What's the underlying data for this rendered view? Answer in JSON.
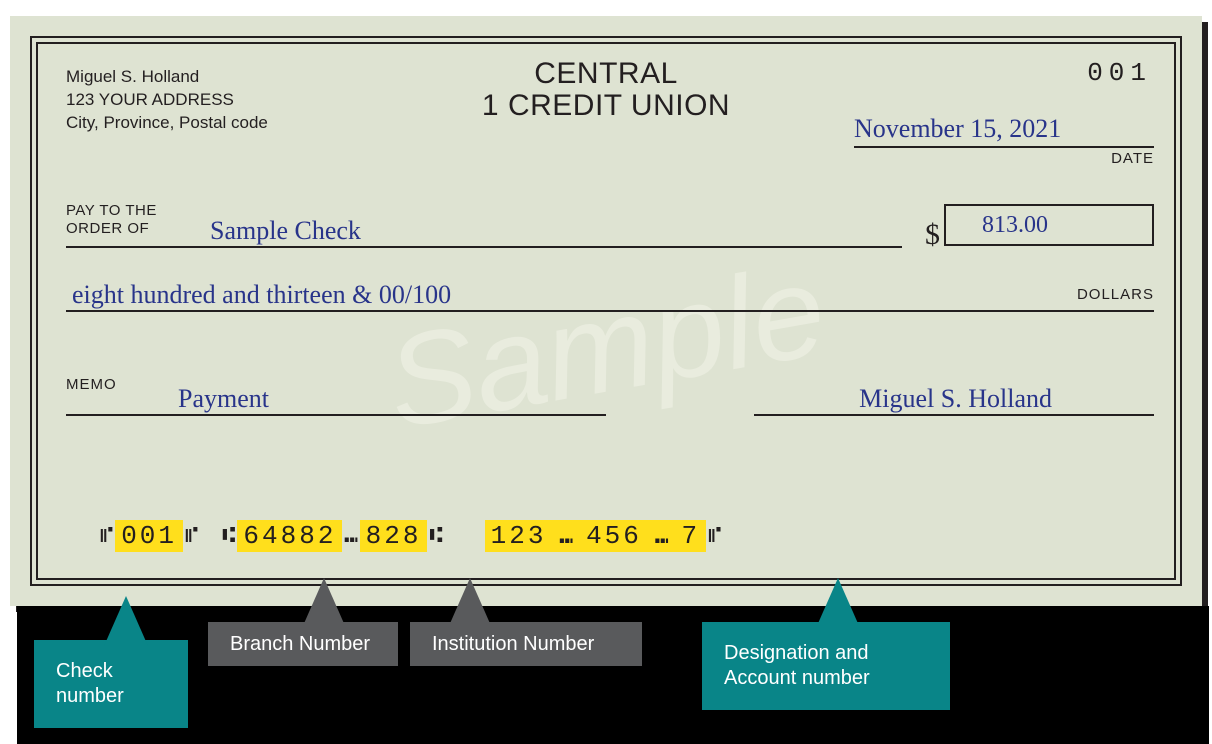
{
  "colors": {
    "check_bg": "#dee3d2",
    "rule": "#231f20",
    "ink_blue": "#28348a",
    "highlight": "#ffdf1c",
    "callout_teal": "#098588",
    "callout_gray": "#595a5c",
    "watermark": "#e9ecde",
    "shadow": "#231f20"
  },
  "typography": {
    "holder_fontsize": 17,
    "bank_fontsize": 30,
    "checknum_top_fontsize": 26,
    "label_fontsize": 15,
    "handwriting_fontsize": 26,
    "dollar_fontsize": 30,
    "amount_fontsize": 24,
    "micr_fontsize": 26,
    "watermark_fontsize": 130,
    "callout_fontsize": 20
  },
  "check": {
    "holder_name": "Miguel S. Holland",
    "holder_addr1": "123 YOUR ADDRESS",
    "holder_addr2": "City, Province, Postal code",
    "bank_line1": "CENTRAL",
    "bank_line2": "1 CREDIT UNION",
    "check_number_top": "001",
    "date": "November 15, 2021",
    "date_label": "DATE",
    "pay_to_label_l1": "PAY TO THE",
    "pay_to_label_l2": "ORDER OF",
    "payee": "Sample Check",
    "currency_symbol": "$",
    "amount_numeric": "813.00",
    "amount_words": "eight hundred and thirteen & 00/100",
    "dollars_label": "DOLLARS",
    "memo_label": "MEMO",
    "memo": "Payment",
    "signature": "Miguel S. Holland",
    "watermark_text": "Sample"
  },
  "micr": {
    "check_number": "001",
    "branch_number": "64882",
    "institution_number": "828",
    "account_segments": [
      "123",
      "456",
      "7"
    ],
    "sym_onus_pair": "⑈",
    "sym_transit_open": "⑆",
    "sym_dash": "⑉",
    "sym_transit_close": "⑆"
  },
  "callouts": {
    "check_number": "Check number",
    "branch_number": "Branch Number",
    "institution_number": "Institution Number",
    "designation_account": "Designation and Account number"
  }
}
